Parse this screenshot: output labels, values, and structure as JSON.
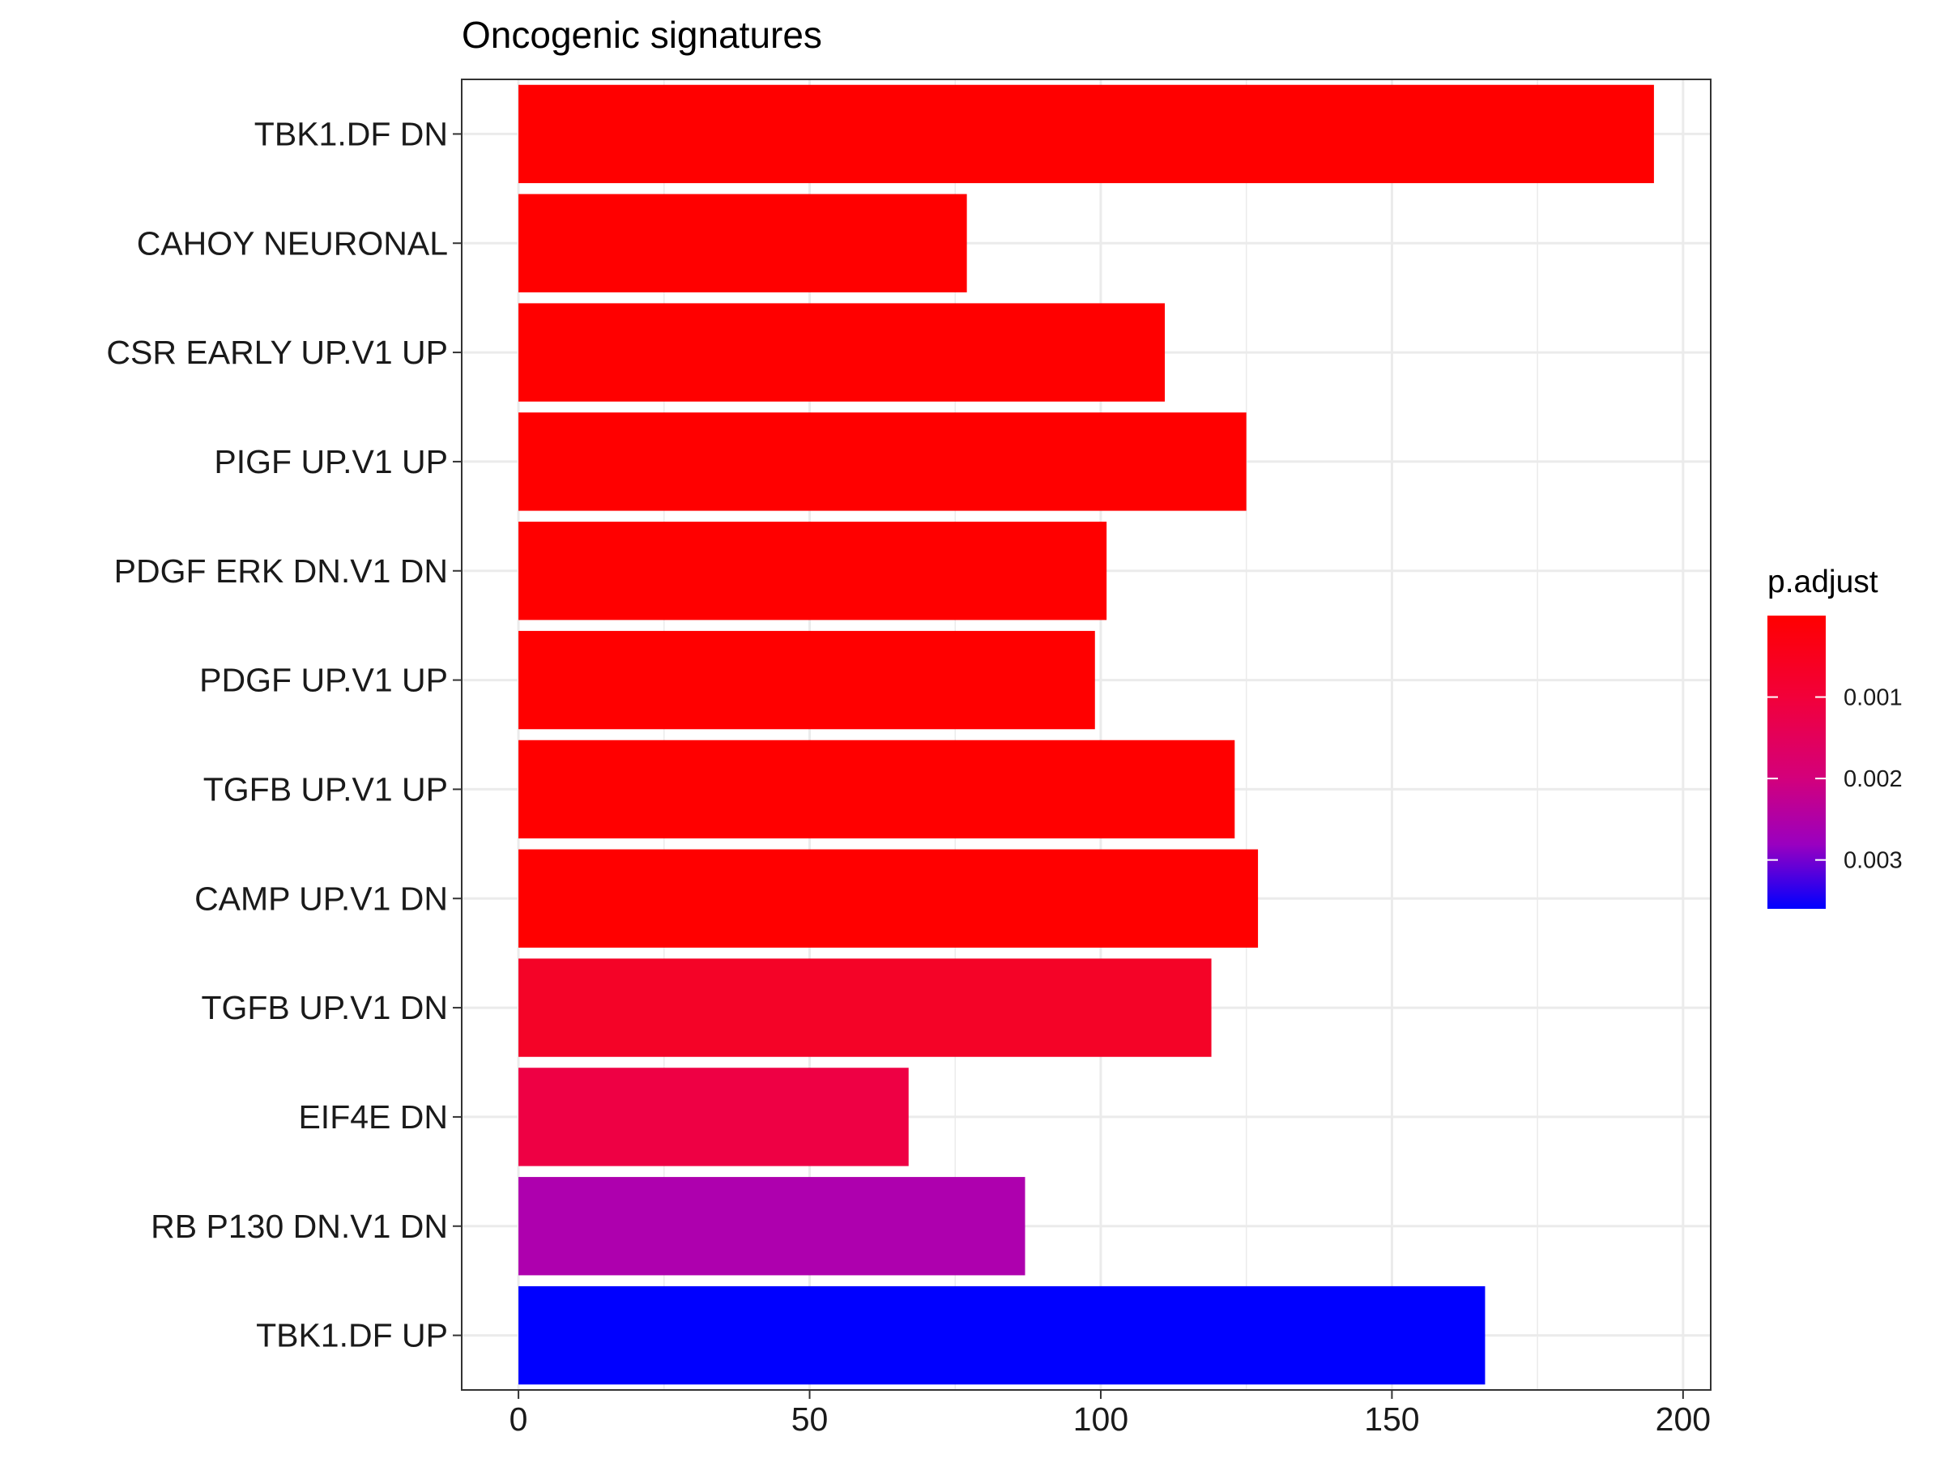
{
  "chart_data": {
    "type": "bar",
    "orientation": "horizontal",
    "title": "Oncogenic signatures",
    "xlabel": "",
    "ylabel": "",
    "xlim": [
      -9.75,
      204.75
    ],
    "xticks": [
      0,
      50,
      100,
      150,
      200
    ],
    "grid": true,
    "categories": [
      "TBK1.DF DN",
      "CAHOY NEURONAL",
      "CSR EARLY UP.V1 UP",
      "PIGF UP.V1 UP",
      "PDGF ERK DN.V1 DN",
      "PDGF UP.V1 UP",
      "TGFB UP.V1 UP",
      "CAMP UP.V1 DN",
      "TGFB UP.V1 DN",
      "EIF4E DN",
      "RB P130 DN.V1 DN",
      "TBK1.DF UP"
    ],
    "values": [
      195,
      77,
      111,
      125,
      101,
      99,
      123,
      127,
      119,
      67,
      87,
      166
    ],
    "p_adjust": [
      2e-05,
      3e-05,
      4e-05,
      5e-05,
      6e-05,
      8e-05,
      0.0001,
      0.00012,
      0.0003,
      0.0007,
      0.0021,
      0.0036
    ],
    "colors": [
      "#FF0000",
      "#FF0000",
      "#FF0000",
      "#FF0000",
      "#FF0000",
      "#FF0000",
      "#FF0000",
      "#FF0000",
      "#F40327",
      "#EE0044",
      "#AE00AE",
      "#0000FF"
    ],
    "legend": {
      "title": "p.adjust",
      "placement": "right",
      "ticks": [
        "0.001",
        "0.002",
        "0.003"
      ],
      "tick_values": [
        0.001,
        0.002,
        0.003
      ],
      "range": [
        0.0,
        0.0036
      ],
      "low_color": "#FF0000",
      "high_color": "#0000FF"
    }
  }
}
